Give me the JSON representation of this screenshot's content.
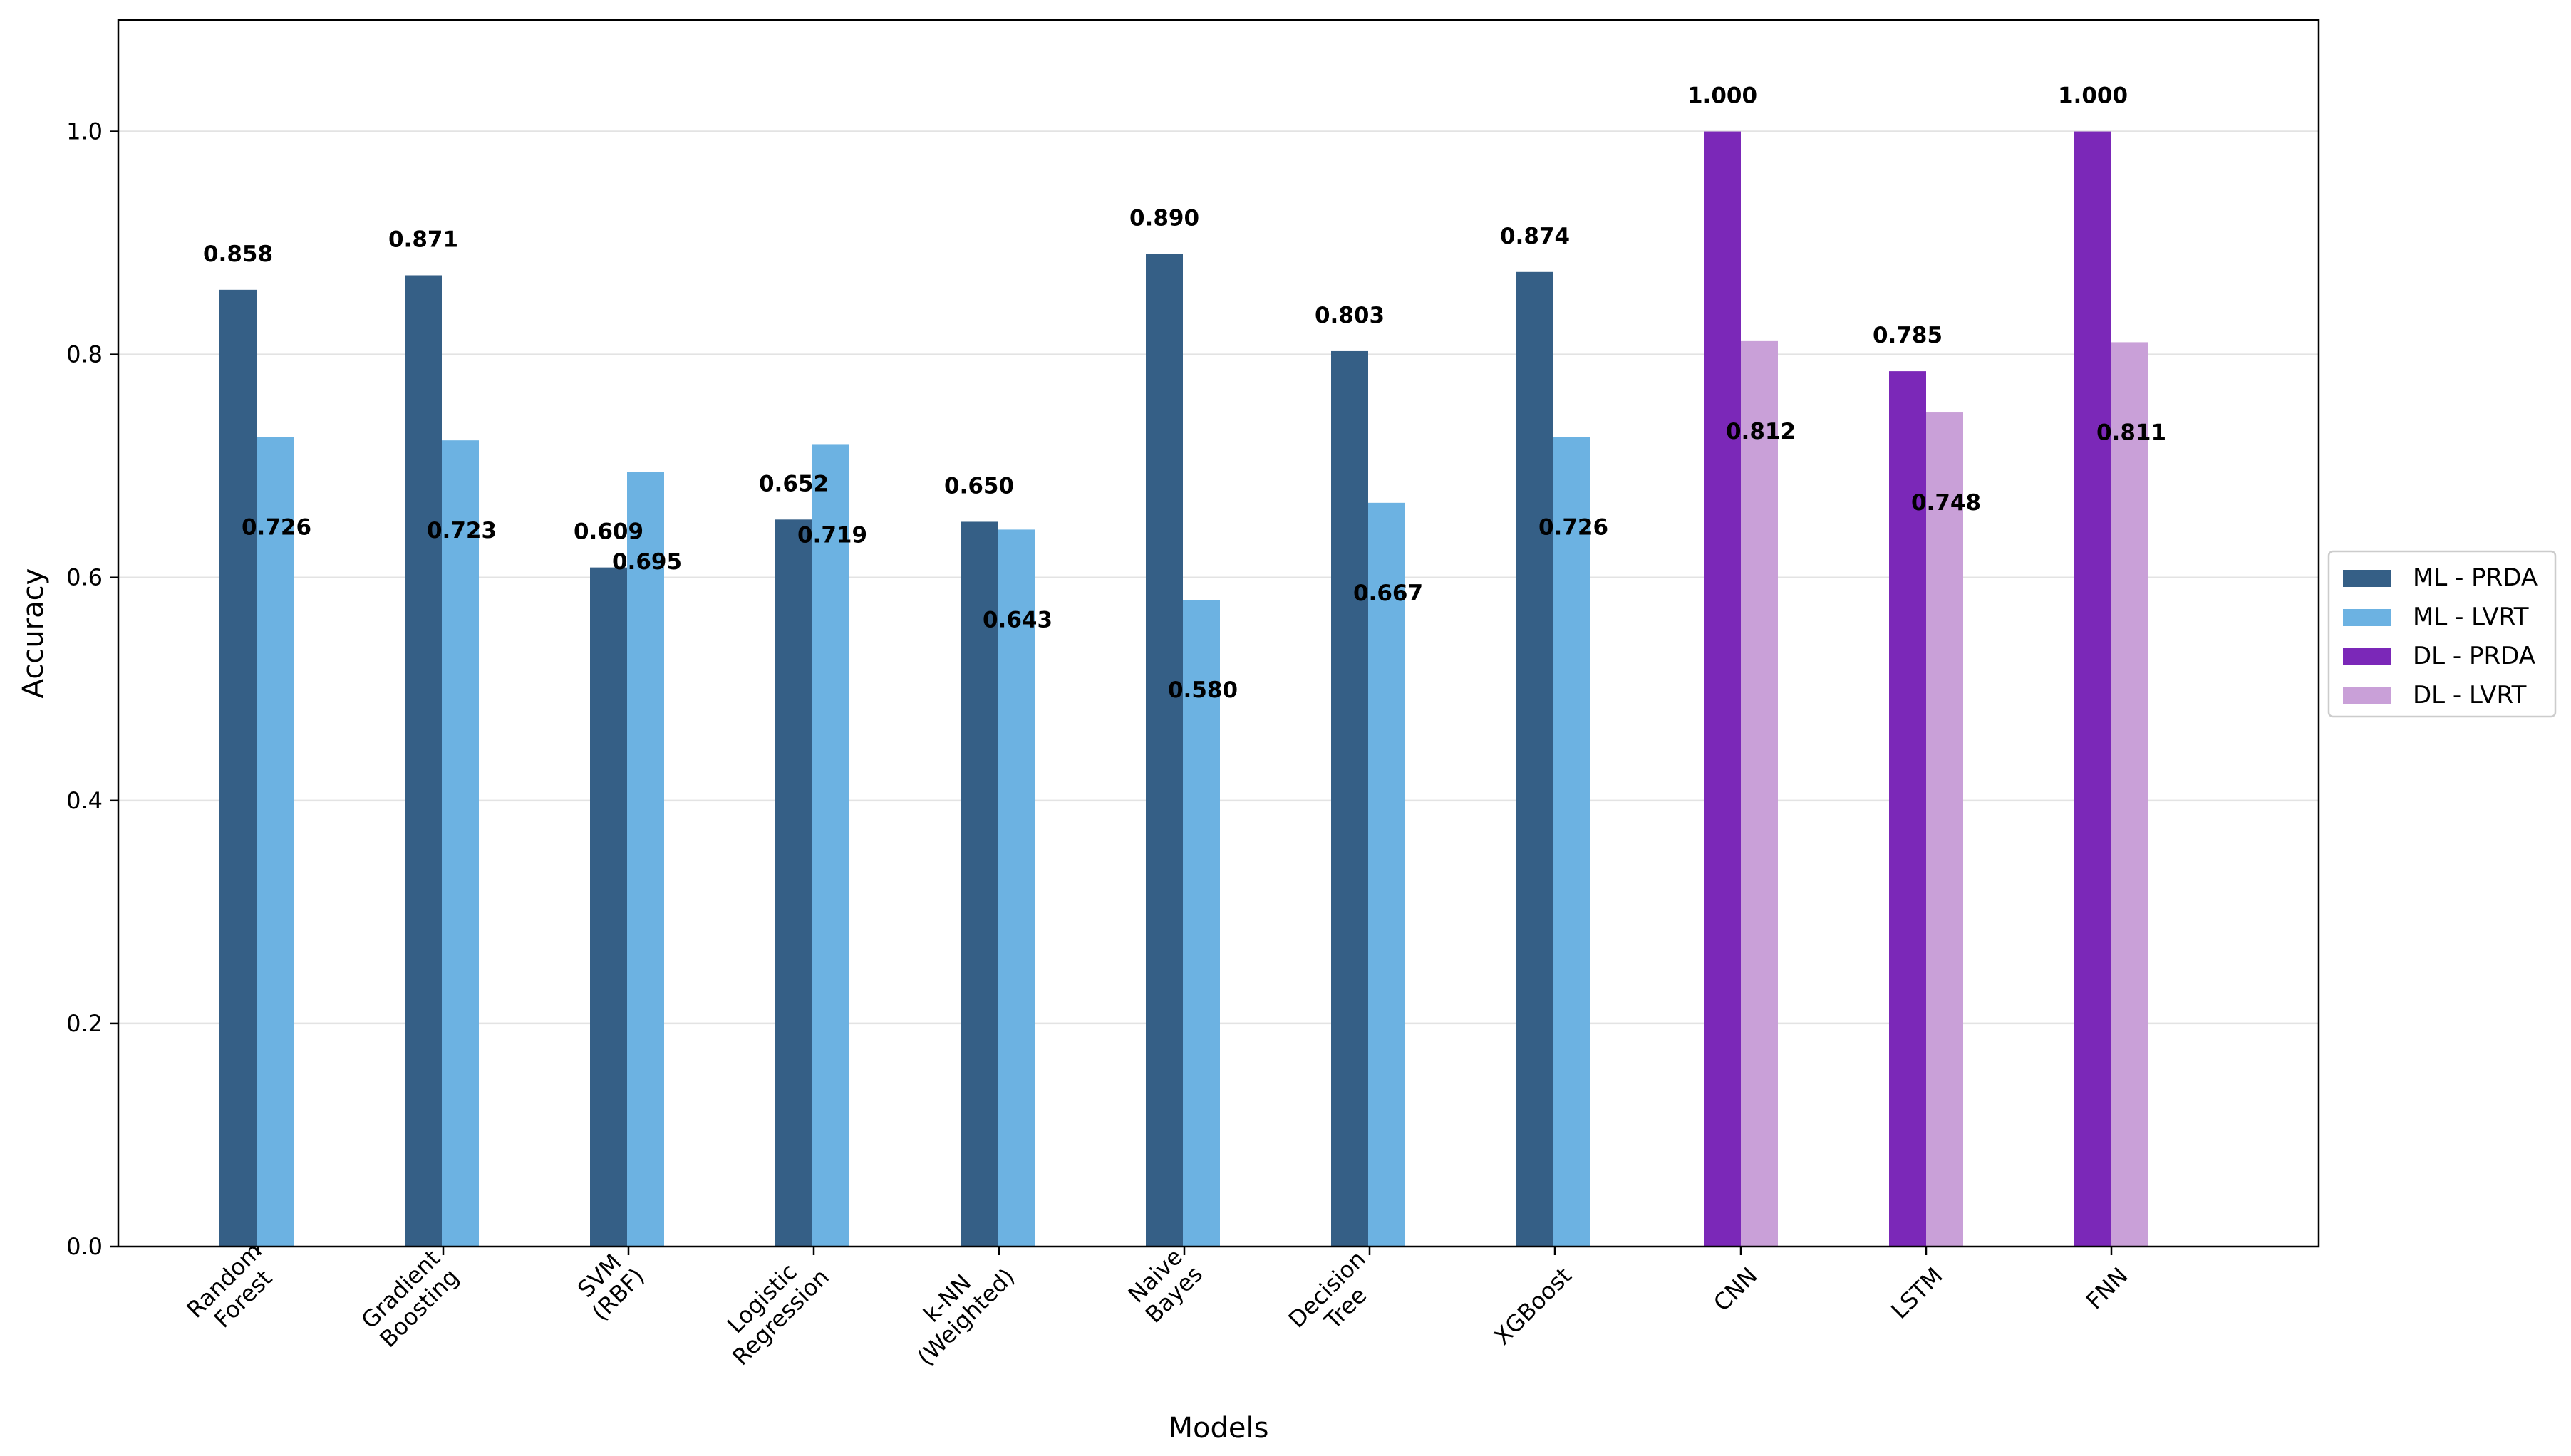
{
  "chart_data": {
    "type": "bar",
    "xlabel": "Models",
    "ylabel": "Accuracy",
    "ylim": [
      0,
      1.1
    ],
    "yticks": [
      "0.0",
      "0.2",
      "0.4",
      "0.6",
      "0.8",
      "1.0"
    ],
    "grid": "y",
    "legend_position": "center-right",
    "categories": [
      "Random\nForest",
      "Gradient\nBoosting",
      "SVM\n(RBF)",
      "Logistic\nRegression",
      "k-NN\n(Weighted)",
      "Naive\nBayes",
      "Decision\nTree",
      "XGBoost",
      "CNN",
      "LSTM",
      "FNN"
    ],
    "series": [
      {
        "name": "ML - PRDA",
        "color": "#355f86",
        "values": [
          0.858,
          0.871,
          0.609,
          0.652,
          0.65,
          0.89,
          0.803,
          0.874,
          null,
          null,
          null
        ],
        "labels": [
          "0.858",
          "0.871",
          "0.609",
          "0.652",
          "0.650",
          "0.890",
          "0.803",
          "0.874",
          null,
          null,
          null
        ]
      },
      {
        "name": "ML - LVRT",
        "color": "#6cb2e2",
        "values": [
          0.726,
          0.723,
          0.695,
          0.719,
          0.643,
          0.58,
          0.667,
          0.726,
          null,
          null,
          null
        ],
        "labels": [
          "0.726",
          "0.723",
          "0.695",
          "0.719",
          "0.643",
          "0.580",
          "0.667",
          "0.726",
          null,
          null,
          null
        ]
      },
      {
        "name": "DL - PRDA",
        "color": "#7b28b8",
        "values": [
          null,
          null,
          null,
          null,
          null,
          null,
          null,
          null,
          1.0,
          0.785,
          1.0
        ],
        "labels": [
          null,
          null,
          null,
          null,
          null,
          null,
          null,
          null,
          "1.000",
          "0.785",
          "1.000"
        ]
      },
      {
        "name": "DL - LVRT",
        "color": "#c9a0d8",
        "values": [
          null,
          null,
          null,
          null,
          null,
          null,
          null,
          null,
          0.812,
          0.748,
          0.811
        ],
        "labels": [
          null,
          null,
          null,
          null,
          null,
          null,
          null,
          null,
          "0.812",
          "0.748",
          "0.811"
        ]
      }
    ]
  }
}
